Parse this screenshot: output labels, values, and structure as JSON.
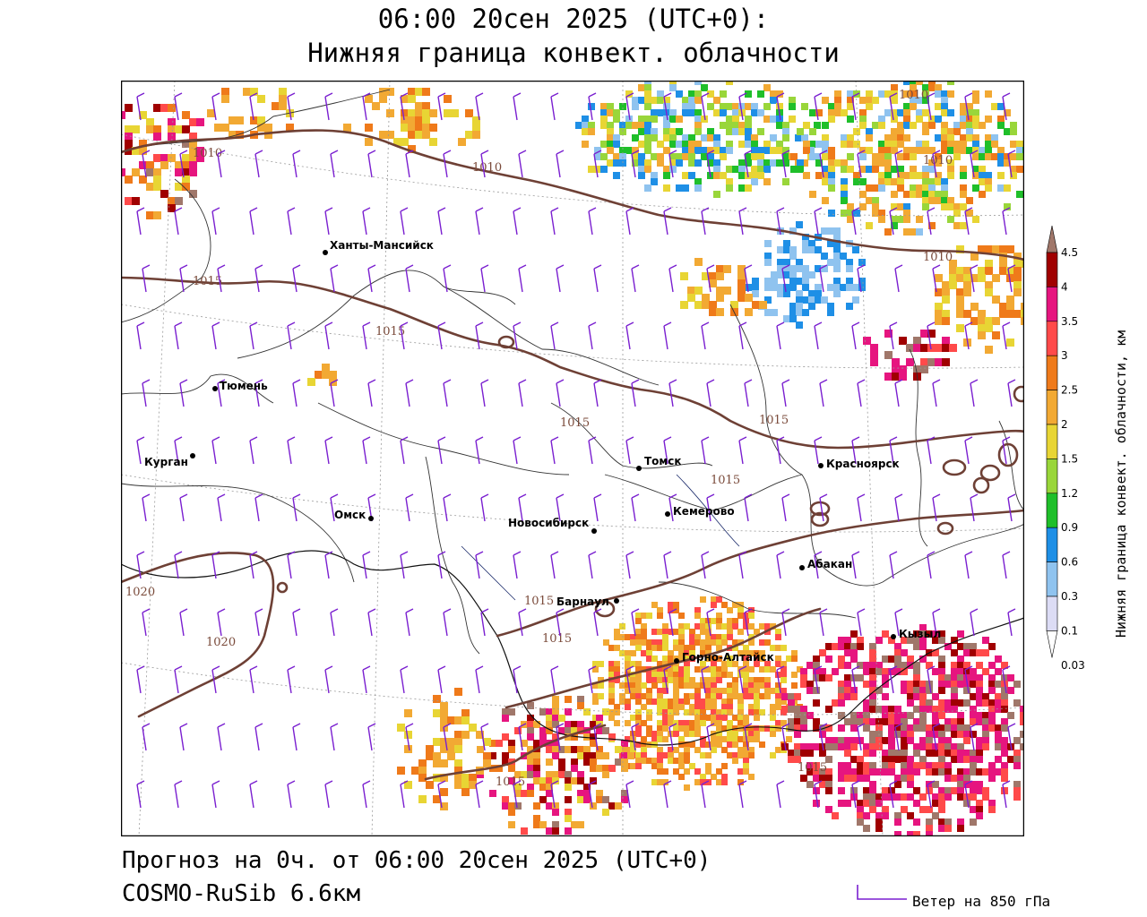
{
  "header": {
    "line1": "06:00 20сен 2025 (UTC+0):",
    "line2": "Нижняя граница конвект. облачности"
  },
  "footer": {
    "forecast": "Прогноз на 0ч. от 06:00 20сен 2025 (UTC+0)",
    "model": "COSMO-RuSib 6.6км"
  },
  "wind_legend": {
    "label": "Ветер на 850 гПа",
    "color": "#7a1fd0"
  },
  "legend": {
    "title": "Нижняя граница конвект. облачности, км",
    "levels": [
      "4.5",
      "4",
      "3.5",
      "3",
      "2.5",
      "2",
      "1.5",
      "1.2",
      "0.9",
      "0.6",
      "0.3",
      "0.1",
      "0.03"
    ],
    "colors": [
      "#a0776a",
      "#a00000",
      "#e6157f",
      "#ff4a4a",
      "#ef7a1a",
      "#f2a933",
      "#e8d534",
      "#99d63a",
      "#1fbf2a",
      "#1e8fe6",
      "#8fc3ef",
      "#dcdcf5",
      "#ffffff"
    ]
  },
  "cities": [
    {
      "name": "Ханты-Мансийск"
    },
    {
      "name": "Тюмень"
    },
    {
      "name": "Курган"
    },
    {
      "name": "Омск"
    },
    {
      "name": "Новосибирск"
    },
    {
      "name": "Томск"
    },
    {
      "name": "Кемерово"
    },
    {
      "name": "Красноярск"
    },
    {
      "name": "Абакан"
    },
    {
      "name": "Барнаул"
    },
    {
      "name": "Горно-Алтайск"
    },
    {
      "name": "Кызыл"
    }
  ],
  "isobars": [
    "1010",
    "1010",
    "1010",
    "1010",
    "1010",
    "1015",
    "1015",
    "1015",
    "1015",
    "1015",
    "1015",
    "1015",
    "1020",
    "1020",
    "1015",
    "1015"
  ]
}
